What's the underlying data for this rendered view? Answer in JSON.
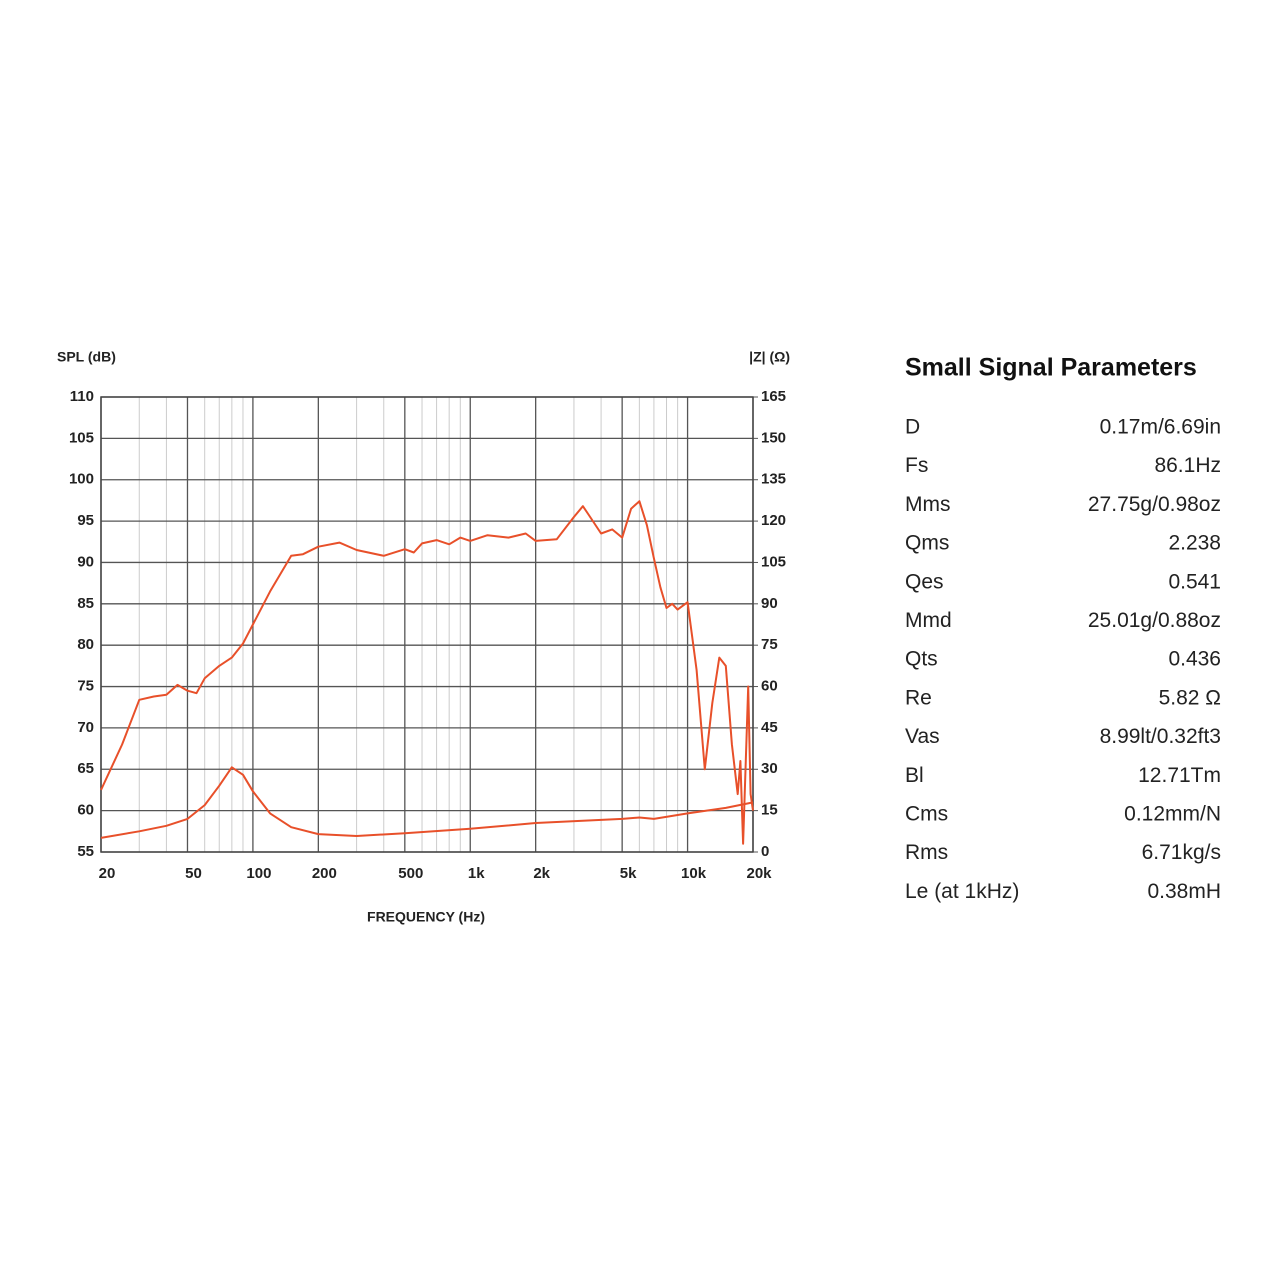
{
  "chart_data": {
    "type": "line",
    "x_label": "FREQUENCY (Hz)",
    "y_label": "SPL (dB)",
    "y2_label": "|Z| (Ω)",
    "xscale": "log",
    "grid": true,
    "xlim": [
      20,
      20000
    ],
    "xticks": [
      20,
      50,
      100,
      200,
      500,
      {
        "value": 1000,
        "label": "1k"
      },
      {
        "value": 2000,
        "label": "2k"
      },
      {
        "value": 5000,
        "label": "5k"
      },
      {
        "value": 10000,
        "label": "10k"
      },
      {
        "value": 20000,
        "label": "20k"
      }
    ],
    "xminorticks": [
      30,
      40,
      60,
      70,
      80,
      90,
      300,
      400,
      600,
      700,
      800,
      900,
      3000,
      4000,
      6000,
      7000,
      8000,
      9000
    ],
    "ylim": [
      55,
      110
    ],
    "yticks": [
      55,
      60,
      65,
      70,
      75,
      80,
      85,
      90,
      95,
      100,
      105,
      110
    ],
    "y2lim": [
      0,
      165
    ],
    "y2ticks": [
      0,
      15,
      30,
      45,
      60,
      75,
      90,
      105,
      120,
      135,
      150,
      165
    ],
    "series": [
      {
        "color": "#e8502a",
        "x": [
          20,
          25,
          30,
          35,
          40,
          45,
          50,
          55,
          60,
          70,
          80,
          90,
          100,
          120,
          150,
          170,
          200,
          250,
          300,
          400,
          500,
          550,
          600,
          700,
          800,
          900,
          1000,
          1200,
          1500,
          1800,
          2000,
          2500,
          3000,
          3300,
          3500,
          4000,
          4500,
          5000,
          5500,
          6000,
          6500,
          7000,
          7500,
          8000,
          8500,
          9000,
          10000,
          11000,
          12000,
          13000,
          14000,
          15000,
          16000,
          17000,
          17500,
          18000,
          19000,
          19500,
          20000
        ],
        "values": [
          62.5,
          68,
          73.4,
          73.8,
          74,
          75.2,
          74.5,
          74.2,
          76,
          77.5,
          78.5,
          80.2,
          82.5,
          86.5,
          90.8,
          91,
          91.9,
          92.4,
          91.5,
          90.8,
          91.6,
          91.2,
          92.3,
          92.7,
          92.2,
          93,
          92.6,
          93.3,
          93,
          93.5,
          92.6,
          92.8,
          95.5,
          96.8,
          95.8,
          93.5,
          94,
          93,
          96.5,
          97.4,
          94.5,
          90.5,
          87,
          84.5,
          85,
          84.3,
          85.2,
          77,
          65,
          73,
          78.5,
          77.5,
          68,
          62,
          66,
          56,
          75,
          62,
          60
        ]
      },
      {
        "color": "#e8502a",
        "axis": "y2",
        "x": [
          20,
          30,
          40,
          50,
          60,
          70,
          80,
          90,
          100,
          120,
          150,
          200,
          300,
          500,
          1000,
          2000,
          5000,
          6000,
          7000,
          10000,
          15000,
          20000
        ],
        "values": [
          5.1,
          7.5,
          9.5,
          12,
          17,
          24,
          30.7,
          28,
          22,
          14,
          9,
          6.5,
          5.8,
          6.8,
          8.4,
          10.5,
          12,
          12.5,
          12,
          14,
          16,
          18
        ]
      }
    ]
  },
  "table": {
    "title": "Small Signal Parameters",
    "rows": [
      [
        "D",
        "0.17m/6.69in"
      ],
      [
        "Fs",
        "86.1Hz"
      ],
      [
        "Mms",
        "27.75g/0.98oz"
      ],
      [
        "Qms",
        "2.238"
      ],
      [
        "Qes",
        "0.541"
      ],
      [
        "Mmd",
        "25.01g/0.88oz"
      ],
      [
        "Qts",
        "0.436"
      ],
      [
        "Re",
        "5.82 Ω"
      ],
      [
        "Vas",
        "8.99lt/0.32ft3"
      ],
      [
        "Bl",
        "12.71Tm"
      ],
      [
        "Cms",
        "0.12mm/N"
      ],
      [
        "Rms",
        "6.71kg/s"
      ],
      [
        "Le (at 1kHz)",
        "0.38mH"
      ]
    ]
  }
}
